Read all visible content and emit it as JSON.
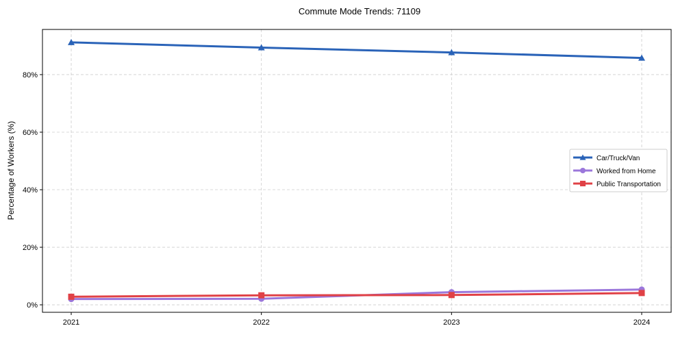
{
  "chart_data": {
    "type": "line",
    "title": "Commute Mode Trends: 71109",
    "xlabel": "",
    "ylabel": "Percentage of Workers (%)",
    "x": [
      "2021",
      "2022",
      "2023",
      "2024"
    ],
    "ylim": [
      -2.6,
      95.7
    ],
    "yticks": [
      0,
      20,
      40,
      60,
      80
    ],
    "ytick_labels": [
      "0%",
      "20%",
      "40%",
      "60%",
      "80%"
    ],
    "grid": true,
    "legend_position": "center-right",
    "series": [
      {
        "name": "Car/Truck/Van",
        "color": "#2a63b8",
        "marker": "triangle",
        "values": [
          91.2,
          89.4,
          87.7,
          85.8
        ]
      },
      {
        "name": "Worked from Home",
        "color": "#9b77db",
        "marker": "circle",
        "values": [
          2.0,
          2.1,
          4.4,
          5.3
        ]
      },
      {
        "name": "Public Transportation",
        "color": "#e04146",
        "marker": "square",
        "values": [
          2.8,
          3.3,
          3.4,
          4.1
        ]
      }
    ]
  }
}
